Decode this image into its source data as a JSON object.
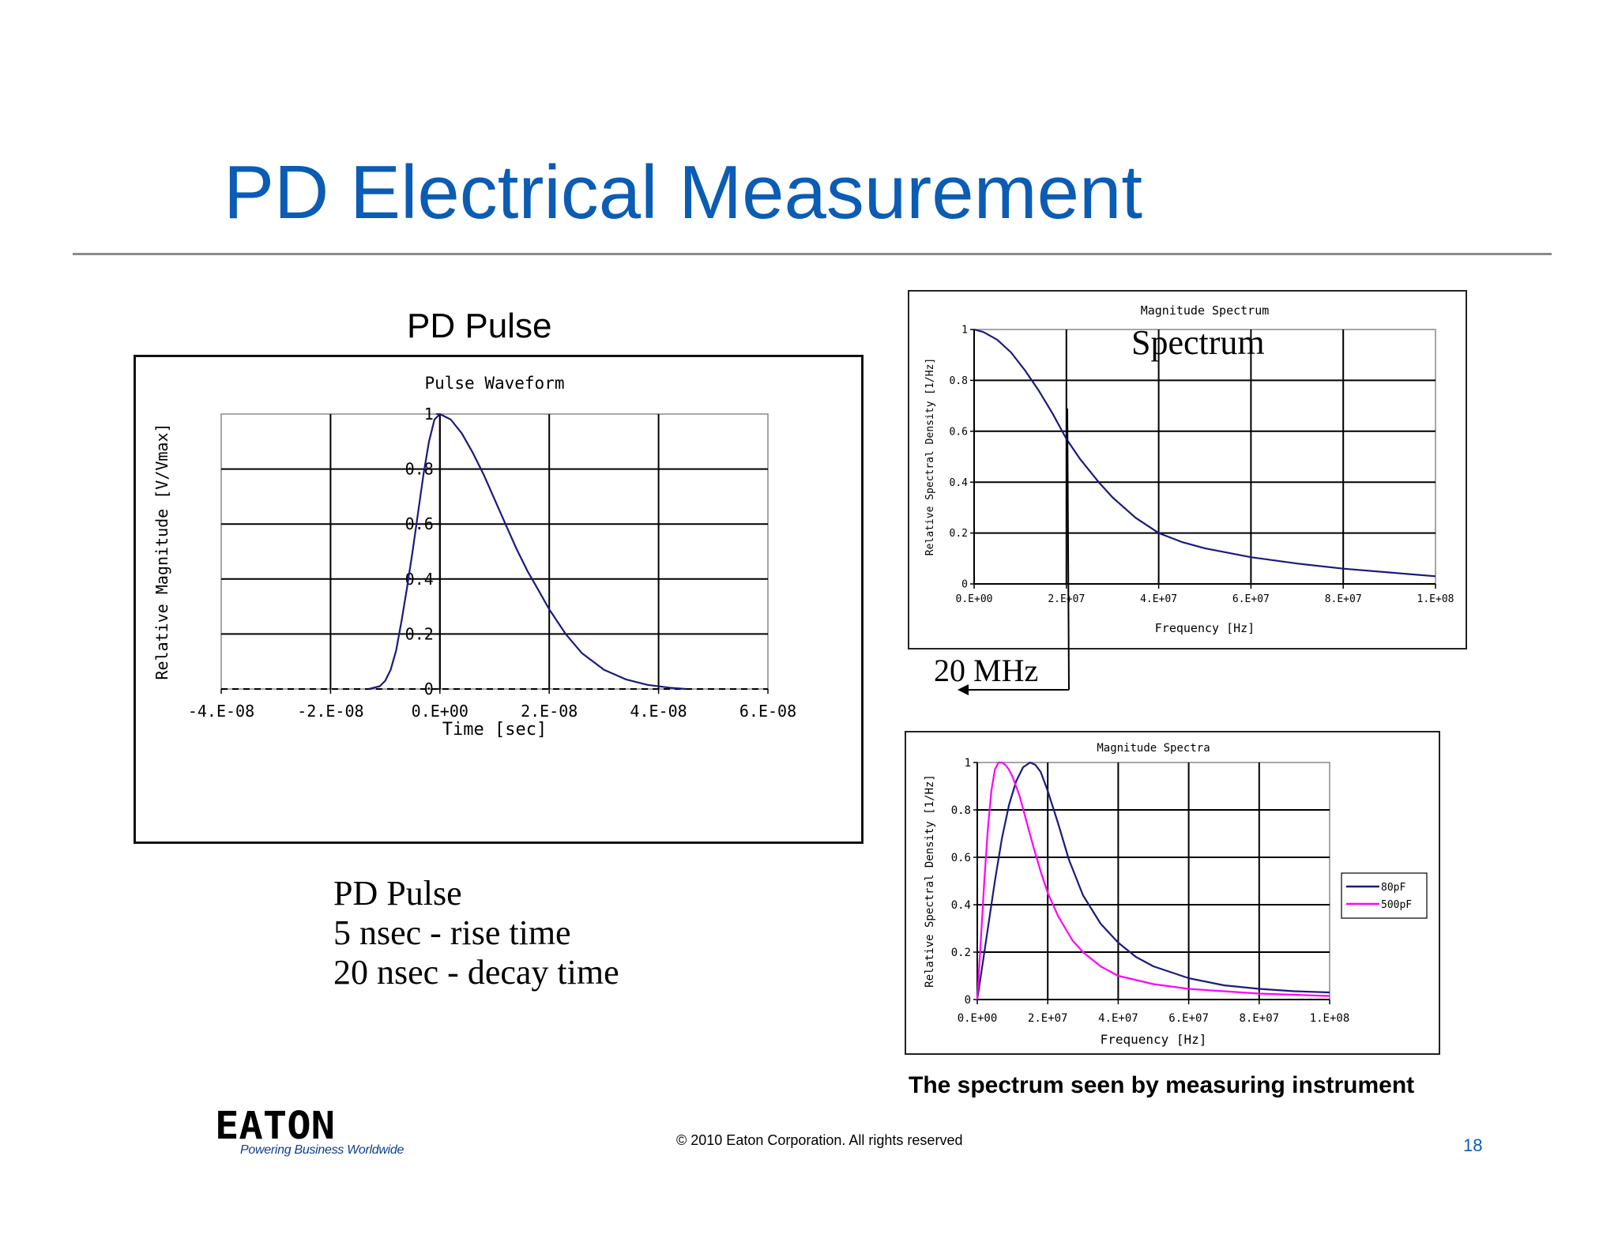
{
  "slide": {
    "title": "PD Electrical Measurement",
    "pulse_heading": "PD Pulse",
    "description_lines": [
      "PD Pulse",
      "5 nsec - rise time",
      "20 nsec - decay time"
    ],
    "spectrum_caption": "The spectrum seen by measuring instrument",
    "copyright": "© 2010 Eaton Corporation. All rights reserved",
    "page_number": "18",
    "logo_text": "EATON",
    "logo_tagline": "Powering Business Worldwide",
    "annotation_spectrum": "Spectrum",
    "annotation_20mhz": "20 MHz"
  },
  "colors": {
    "title": "#0a5cb5",
    "series_navy": "#1a1a7e",
    "series_magenta": "#ff00ff"
  },
  "chart_data": [
    {
      "id": "pulse",
      "type": "line",
      "title": "Pulse Waveform",
      "xlabel": "Time [sec]",
      "ylabel": "Relative Magnitude [V/Vmax]",
      "xlim": [
        -4e-08,
        6e-08
      ],
      "ylim": [
        0,
        1
      ],
      "x_tick_labels": [
        "-4.E-08",
        "-2.E-08",
        "0.E+00",
        "2.E-08",
        "4.E-08",
        "6.E-08"
      ],
      "y_tick_labels": [
        "0",
        "0.2",
        "0.4",
        "0.6",
        "0.8",
        "1"
      ],
      "grid": true,
      "series": [
        {
          "color": "#1a1a7e",
          "x": [
            -1.3e-08,
            -1.1e-08,
            -1e-08,
            -9e-09,
            -8e-09,
            -7e-09,
            -6e-09,
            -5e-09,
            -4e-09,
            -3e-09,
            -2e-09,
            -1e-09,
            0,
            2e-09,
            4e-09,
            6e-09,
            8e-09,
            1e-08,
            1.2e-08,
            1.4e-08,
            1.6e-08,
            1.8e-08,
            2e-08,
            2.3e-08,
            2.6e-08,
            3e-08,
            3.4e-08,
            3.8e-08,
            4.2e-08,
            4.5e-08
          ],
          "y": [
            0,
            0.01,
            0.03,
            0.07,
            0.14,
            0.25,
            0.37,
            0.5,
            0.64,
            0.78,
            0.9,
            0.98,
            1.0,
            0.98,
            0.93,
            0.86,
            0.78,
            0.69,
            0.6,
            0.51,
            0.43,
            0.36,
            0.29,
            0.2,
            0.13,
            0.07,
            0.035,
            0.015,
            0.005,
            0
          ]
        }
      ]
    },
    {
      "id": "magnitude-spectrum",
      "type": "line",
      "title": "Magnitude Spectrum",
      "xlabel": "Frequency [Hz]",
      "ylabel": "Relative Spectral Density [1/Hz]",
      "xlim": [
        0,
        100000000.0
      ],
      "ylim": [
        0,
        1
      ],
      "x_tick_labels": [
        "0.E+00",
        "2.E+07",
        "4.E+07",
        "6.E+07",
        "8.E+07",
        "1.E+08"
      ],
      "y_tick_labels": [
        "0",
        "0.2",
        "0.4",
        "0.6",
        "0.8",
        "1"
      ],
      "grid": true,
      "series": [
        {
          "color": "#1a1a7e",
          "x": [
            0,
            2000000.0,
            5000000.0,
            8000000.0,
            11000000.0,
            14000000.0,
            17000000.0,
            20000000.0,
            23000000.0,
            27000000.0,
            30000000.0,
            35000000.0,
            40000000.0,
            45000000.0,
            50000000.0,
            60000000.0,
            70000000.0,
            80000000.0,
            90000000.0,
            100000000.0
          ],
          "y": [
            1.0,
            0.99,
            0.96,
            0.91,
            0.84,
            0.76,
            0.67,
            0.57,
            0.49,
            0.4,
            0.34,
            0.26,
            0.2,
            0.165,
            0.14,
            0.105,
            0.08,
            0.06,
            0.045,
            0.03
          ]
        }
      ]
    },
    {
      "id": "magnitude-spectra",
      "type": "line",
      "title": "Magnitude Spectra",
      "xlabel": "Frequency [Hz]",
      "ylabel": "Relative Spectral Density [1/Hz]",
      "xlim": [
        0,
        100000000.0
      ],
      "ylim": [
        0,
        1
      ],
      "x_tick_labels": [
        "0.E+00",
        "2.E+07",
        "4.E+07",
        "6.E+07",
        "8.E+07",
        "1.E+08"
      ],
      "y_tick_labels": [
        "0",
        "0.2",
        "0.4",
        "0.6",
        "0.8",
        "1"
      ],
      "grid": true,
      "legend": "right",
      "series": [
        {
          "name": "80pF",
          "color": "#1a1a7e",
          "x": [
            0,
            1000000.0,
            3000000.0,
            5000000.0,
            7000000.0,
            9000000.0,
            11000000.0,
            13000000.0,
            15000000.0,
            16500000.0,
            18000000.0,
            20000000.0,
            23000000.0,
            26000000.0,
            30000000.0,
            35000000.0,
            40000000.0,
            45000000.0,
            50000000.0,
            60000000.0,
            70000000.0,
            80000000.0,
            90000000.0,
            100000000.0
          ],
          "y": [
            0,
            0.1,
            0.3,
            0.5,
            0.68,
            0.82,
            0.92,
            0.98,
            1.0,
            0.99,
            0.96,
            0.88,
            0.74,
            0.59,
            0.44,
            0.32,
            0.24,
            0.18,
            0.14,
            0.09,
            0.06,
            0.045,
            0.035,
            0.03
          ]
        },
        {
          "name": "500pF",
          "color": "#ff00ff",
          "x": [
            0,
            1000000.0,
            2000000.0,
            3000000.0,
            4000000.0,
            5000000.0,
            6000000.0,
            7000000.0,
            8000000.0,
            9000000.0,
            10000000.0,
            12000000.0,
            14000000.0,
            16000000.0,
            18000000.0,
            20000000.0,
            23000000.0,
            27000000.0,
            30000000.0,
            35000000.0,
            40000000.0,
            50000000.0,
            60000000.0,
            70000000.0,
            80000000.0,
            90000000.0,
            100000000.0
          ],
          "y": [
            0,
            0.25,
            0.5,
            0.72,
            0.88,
            0.97,
            1.0,
            1.0,
            0.99,
            0.97,
            0.94,
            0.86,
            0.75,
            0.64,
            0.54,
            0.45,
            0.35,
            0.25,
            0.2,
            0.14,
            0.1,
            0.065,
            0.045,
            0.035,
            0.025,
            0.02,
            0.015
          ]
        }
      ]
    }
  ]
}
